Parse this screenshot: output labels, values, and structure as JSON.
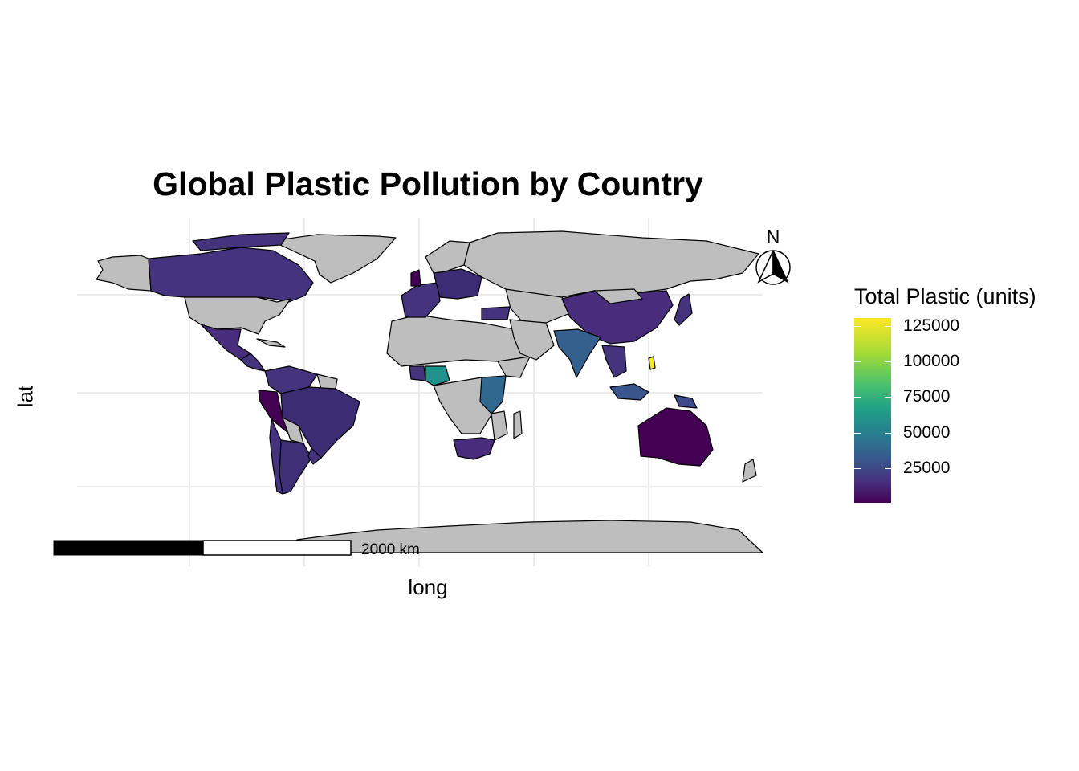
{
  "title": "Global Plastic Pollution by Country",
  "xlabel": "long",
  "ylabel": "lat",
  "legend": {
    "title": "Total Plastic (units)",
    "ticks": [
      "125000",
      "100000",
      "75000",
      "50000",
      "25000"
    ],
    "scale": "viridis",
    "colors": [
      "#440154",
      "#46327e",
      "#365c8d",
      "#277f8e",
      "#1fa187",
      "#4ac16d",
      "#a0da39",
      "#fde725"
    ]
  },
  "north_arrow": {
    "label": "N"
  },
  "scale_bar": {
    "label": "2000 km"
  },
  "colors": {
    "no_data": "#bebebe",
    "border": "#000000",
    "grid": "#ebebeb"
  }
}
